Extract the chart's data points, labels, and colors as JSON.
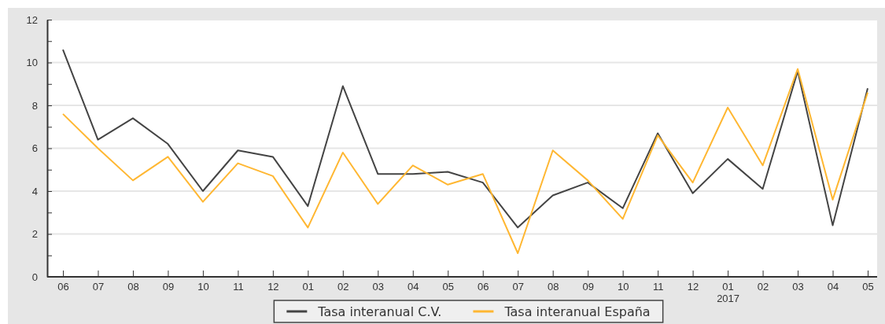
{
  "chart_data": {
    "type": "line",
    "categories": [
      "06",
      "07",
      "08",
      "09",
      "10",
      "11",
      "12",
      "01",
      "02",
      "03",
      "04",
      "05",
      "06",
      "07",
      "08",
      "09",
      "10",
      "11",
      "12",
      "01\n2017",
      "02",
      "03",
      "04",
      "05"
    ],
    "series": [
      {
        "name": "Tasa interanual C.V.",
        "color": "#444444",
        "values": [
          10.6,
          6.4,
          7.4,
          6.2,
          4.0,
          5.9,
          5.6,
          3.3,
          8.9,
          4.8,
          4.8,
          4.9,
          4.4,
          2.3,
          3.8,
          4.4,
          3.2,
          6.7,
          3.9,
          5.5,
          4.1,
          9.6,
          2.4,
          8.8
        ]
      },
      {
        "name": "Tasa interanual España",
        "color": "#ffb732",
        "values": [
          7.6,
          6.0,
          4.5,
          5.6,
          3.5,
          5.3,
          4.7,
          2.3,
          5.8,
          3.4,
          5.2,
          4.3,
          4.8,
          1.1,
          5.9,
          4.5,
          2.7,
          6.6,
          4.4,
          7.9,
          5.2,
          9.7,
          3.6,
          8.6
        ]
      }
    ],
    "ylim": [
      0,
      12
    ],
    "yticks": [
      0,
      {
        "value": 1,
        "label": null
      },
      2,
      {
        "value": 3,
        "label": null
      },
      4,
      {
        "value": 5,
        "label": null
      },
      6,
      {
        "value": 7,
        "label": null
      },
      8,
      {
        "value": 9,
        "label": null
      },
      10,
      {
        "value": 11,
        "label": null
      },
      12
    ],
    "grid": "y",
    "legend": "bottom",
    "marker": "none",
    "line_style": "solid"
  }
}
